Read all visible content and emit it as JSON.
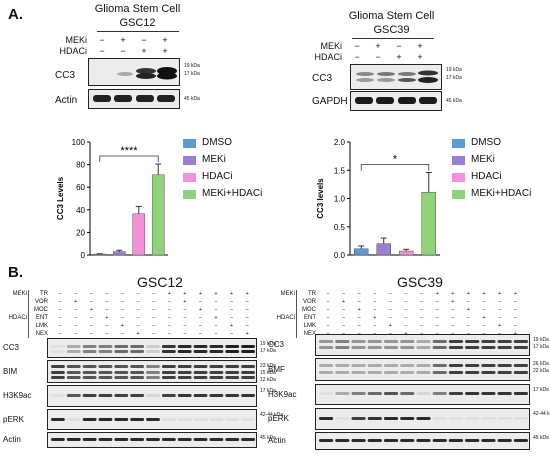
{
  "panel_a": {
    "letter": "A.",
    "gsc12": {
      "title1": "Glioma Stem Cell",
      "title2": "GSC12",
      "treatments": [
        {
          "name": "MEKi",
          "marks": [
            "−",
            "+",
            "−",
            "+"
          ]
        },
        {
          "name": "HDACi",
          "marks": [
            "−",
            "−",
            "+",
            "+"
          ]
        }
      ],
      "rows": [
        {
          "label": "CC3",
          "kda": [
            "19 kDa",
            "17 kDa"
          ]
        },
        {
          "label": "Actin",
          "kda": [
            "45 kDa"
          ]
        }
      ]
    },
    "gsc39": {
      "title1": "Glioma Stem Cell",
      "title2": "GSC39",
      "treatments": [
        {
          "name": "MEKi",
          "marks": [
            "−",
            "+",
            "−",
            "+"
          ]
        },
        {
          "name": "HDACi",
          "marks": [
            "−",
            "−",
            "+",
            "+"
          ]
        }
      ],
      "rows": [
        {
          "label": "CC3",
          "kda": [
            "19 kDa",
            "17 kDa"
          ]
        },
        {
          "label": "GAPDH",
          "kda": [
            "45 kDa"
          ]
        }
      ]
    },
    "legend": [
      {
        "label": "DMSO",
        "color": "#5b9bd5"
      },
      {
        "label": "MEKi",
        "color": "#9b7fd4"
      },
      {
        "label": "HDACi",
        "color": "#f48fd9"
      },
      {
        "label": "MEKi+HDACi",
        "color": "#8fd47a"
      }
    ]
  },
  "chart_data": [
    {
      "type": "bar",
      "ylabel": "CC3 Levels",
      "categories": [
        "DMSO",
        "MEKi",
        "HDACi",
        "MEKi+HDACi"
      ],
      "values": [
        0.8,
        3,
        36.5,
        71
      ],
      "errors": [
        0.3,
        1.2,
        6.5,
        9.5
      ],
      "ylim": [
        0,
        100
      ],
      "yticks": [
        "0",
        "20",
        "40",
        "60",
        "80",
        "100"
      ],
      "significance": "****",
      "colors": [
        "#5b9bd5",
        "#9b7fd4",
        "#f48fd9",
        "#8fd47a"
      ],
      "grid": false
    },
    {
      "type": "bar",
      "ylabel": "CC3 levels",
      "categories": [
        "DMSO",
        "MEKi",
        "HDACi",
        "MEKi+HDACi"
      ],
      "values": [
        0.11,
        0.2,
        0.07,
        1.11
      ],
      "errors": [
        0.05,
        0.1,
        0.03,
        0.35
      ],
      "ylim": [
        0,
        2.0
      ],
      "yticks": [
        "0.0",
        "0.5",
        "1.0",
        "1.5",
        "2.0"
      ],
      "significance": "*",
      "colors": [
        "#5b9bd5",
        "#9b7fd4",
        "#f48fd9",
        "#8fd47a"
      ],
      "grid": false
    }
  ],
  "panel_b": {
    "letter": "B.",
    "gsc12": {
      "title": "GSC12",
      "treatments": [
        {
          "group": "MEKi",
          "name": "TR",
          "marks": [
            "−",
            "−",
            "−",
            "−",
            "−",
            "−",
            "−",
            "+",
            "+",
            "+",
            "+",
            "+",
            "+"
          ]
        },
        {
          "group": "",
          "name": "VOR",
          "marks": [
            "−",
            "+",
            "−",
            "−",
            "−",
            "−",
            "−",
            "−",
            "+",
            "−",
            "−",
            "−",
            "−"
          ]
        },
        {
          "group": "",
          "name": "MOC",
          "marks": [
            "−",
            "−",
            "+",
            "−",
            "−",
            "−",
            "−",
            "−",
            "−",
            "+",
            "−",
            "−",
            "−"
          ]
        },
        {
          "group": "HDACi",
          "name": "ENT",
          "marks": [
            "−",
            "−",
            "−",
            "+",
            "−",
            "−",
            "−",
            "−",
            "−",
            "−",
            "+",
            "−",
            "−"
          ]
        },
        {
          "group": "",
          "name": "LMK",
          "marks": [
            "−",
            "−",
            "−",
            "−",
            "+",
            "−",
            "−",
            "−",
            "−",
            "−",
            "−",
            "+",
            "−"
          ]
        },
        {
          "group": "",
          "name": "NEX",
          "marks": [
            "−",
            "−",
            "−",
            "−",
            "−",
            "+",
            "−",
            "−",
            "−",
            "−",
            "−",
            "−",
            "+"
          ]
        }
      ],
      "rows": [
        {
          "label": "CC3",
          "kda": [
            "19 kDa",
            "17 kDa"
          ]
        },
        {
          "label": "BIM",
          "kda": [
            "23 kDa",
            "15 kDa",
            "12 kDa"
          ]
        },
        {
          "label": "H3K9ac",
          "kda": [
            "17 kDa"
          ]
        },
        {
          "label": "pERK",
          "kda": [
            "42-44 kDa"
          ]
        },
        {
          "label": "Actin",
          "kda": [
            "45 kDa"
          ]
        }
      ]
    },
    "gsc39": {
      "title": "GSC39",
      "treatments": [
        {
          "group": "MEKi",
          "name": "TR",
          "marks": [
            "−",
            "−",
            "−",
            "−",
            "−",
            "−",
            "−",
            "+",
            "+",
            "+",
            "+",
            "+",
            "+"
          ]
        },
        {
          "group": "",
          "name": "VOR",
          "marks": [
            "−",
            "+",
            "−",
            "−",
            "−",
            "−",
            "−",
            "−",
            "+",
            "−",
            "−",
            "−",
            "−"
          ]
        },
        {
          "group": "",
          "name": "MOC",
          "marks": [
            "−",
            "−",
            "+",
            "−",
            "−",
            "−",
            "−",
            "−",
            "−",
            "+",
            "−",
            "−",
            "−"
          ]
        },
        {
          "group": "HDACi",
          "name": "ENT",
          "marks": [
            "−",
            "−",
            "−",
            "+",
            "−",
            "−",
            "−",
            "−",
            "−",
            "−",
            "+",
            "−",
            "−"
          ]
        },
        {
          "group": "",
          "name": "LMK",
          "marks": [
            "−",
            "−",
            "−",
            "−",
            "+",
            "−",
            "−",
            "−",
            "−",
            "−",
            "−",
            "+",
            "−"
          ]
        },
        {
          "group": "",
          "name": "NEX",
          "marks": [
            "−",
            "−",
            "−",
            "−",
            "−",
            "+",
            "−",
            "−",
            "−",
            "−",
            "−",
            "−",
            "+"
          ]
        }
      ],
      "rows": [
        {
          "label": "CC3",
          "kda": [
            "19 kDa",
            "17 kDa"
          ]
        },
        {
          "label": "BMF",
          "kda": [
            "26 kDa",
            "22 kDa"
          ]
        },
        {
          "label": "H3K9ac",
          "kda": [
            "17 kDa"
          ]
        },
        {
          "label": "pERK",
          "kda": [
            "42-44 kDa"
          ]
        },
        {
          "label": "Actin",
          "kda": [
            "45 kDa"
          ]
        }
      ]
    }
  }
}
